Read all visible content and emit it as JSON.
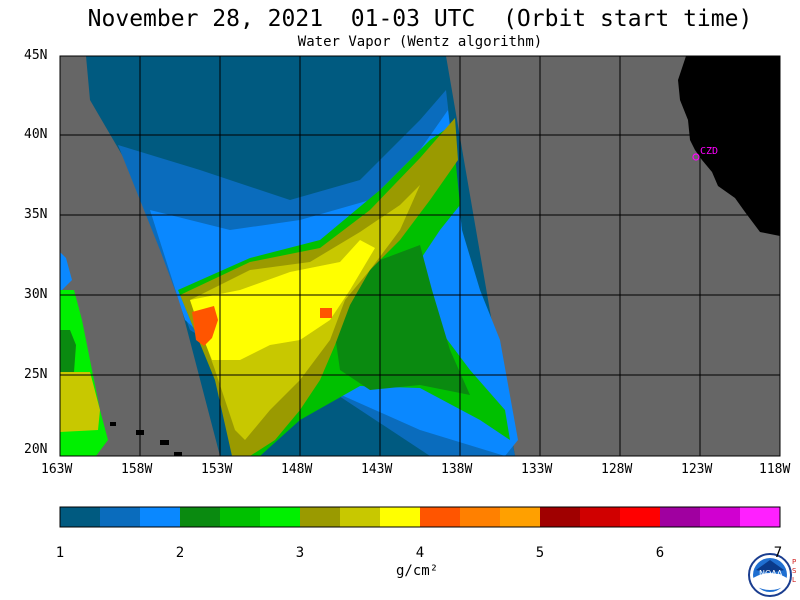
{
  "title": "November 28, 2021  01-03 UTC  (Orbit start time)",
  "subtitle": "Water Vapor (Wentz algorithm)",
  "map": {
    "lat_labels": [
      "45N",
      "40N",
      "35N",
      "30N",
      "25N",
      "20N"
    ],
    "lon_labels": [
      "163W",
      "158W",
      "153W",
      "148W",
      "143W",
      "138W",
      "133W",
      "128W",
      "123W",
      "118W"
    ],
    "station_label": "CZD",
    "colors": {
      "no_data": "#666666",
      "land": "#000000",
      "grid": "#000000",
      "station": "#ff00ff"
    }
  },
  "colorbar": {
    "tick_labels": [
      "1",
      "2",
      "3",
      "4",
      "5",
      "6",
      "7"
    ],
    "units": "g/cm²",
    "colors": [
      "#005a80",
      "#0a6cbd",
      "#0a88ff",
      "#0a8a10",
      "#00c000",
      "#00f000",
      "#9a9a00",
      "#c8c800",
      "#ffff00",
      "#ff5500",
      "#ff8000",
      "#ffa000",
      "#a00000",
      "#d00000",
      "#ff0000",
      "#a000a0",
      "#d000d0",
      "#ff20ff"
    ]
  },
  "logo": {
    "text": "NOAA",
    "side_text": "PSL"
  }
}
